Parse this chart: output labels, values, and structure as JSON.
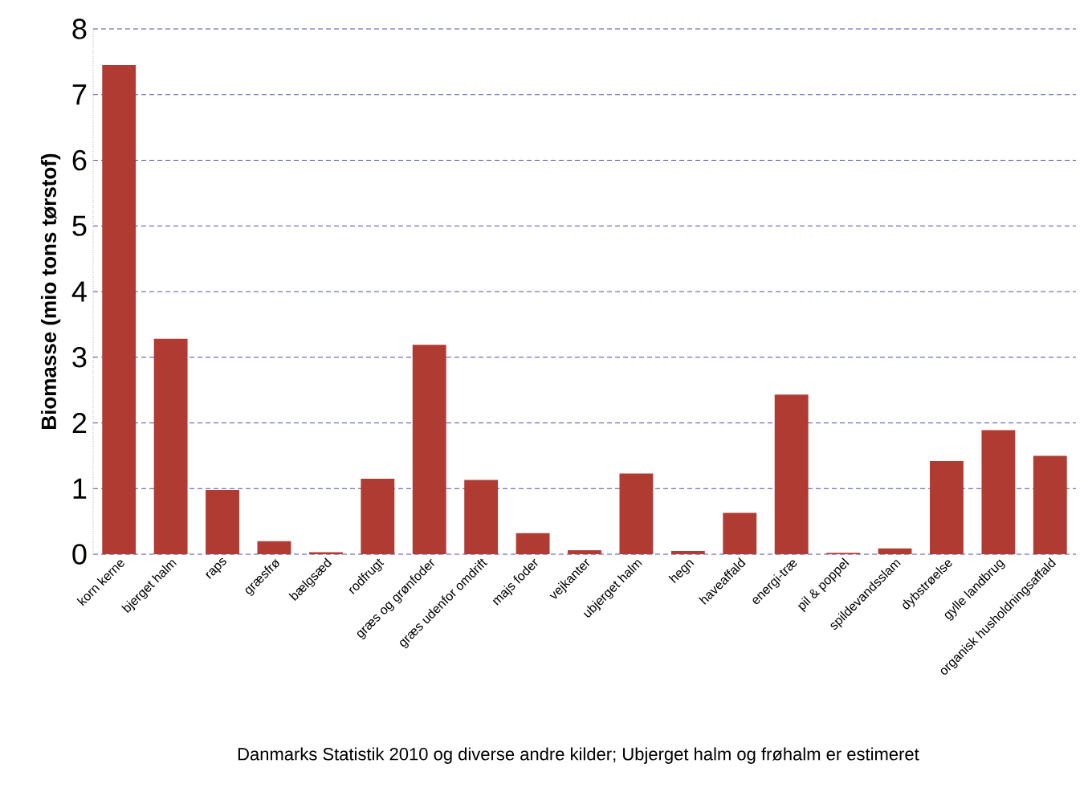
{
  "chart_data": {
    "type": "bar",
    "ylabel": "Biomasse (mio tons tørstof)",
    "categories": [
      "korn kerne",
      "bjerget halm",
      "raps",
      "græsfrø",
      "bælgsæd",
      "rodfrugt",
      "græs og grønfoder",
      "græs udenfor omdrift",
      "majs foder",
      "vejkanter",
      "ubjerget halm",
      "hegn",
      "haveaffald",
      "energi-træ",
      "pil & poppel",
      "spildevandsslam",
      "dybstrøelse",
      "gylle landbrug",
      "organisk husholdningsaffald"
    ],
    "values": [
      7.45,
      3.28,
      0.98,
      0.2,
      0.03,
      1.15,
      3.19,
      1.13,
      0.32,
      0.06,
      1.23,
      0.05,
      0.63,
      2.43,
      0.02,
      0.09,
      1.42,
      1.89,
      1.5
    ],
    "color": "#b03b33",
    "ylim": [
      0,
      8
    ],
    "yticks": [
      0,
      1,
      2,
      3,
      4,
      5,
      6,
      7,
      8
    ],
    "grid": "y",
    "annotations": [
      "Danmarks Statistik 2010 og diverse andre kilder; Ubjerget halm og frøhalm er estimeret"
    ]
  }
}
